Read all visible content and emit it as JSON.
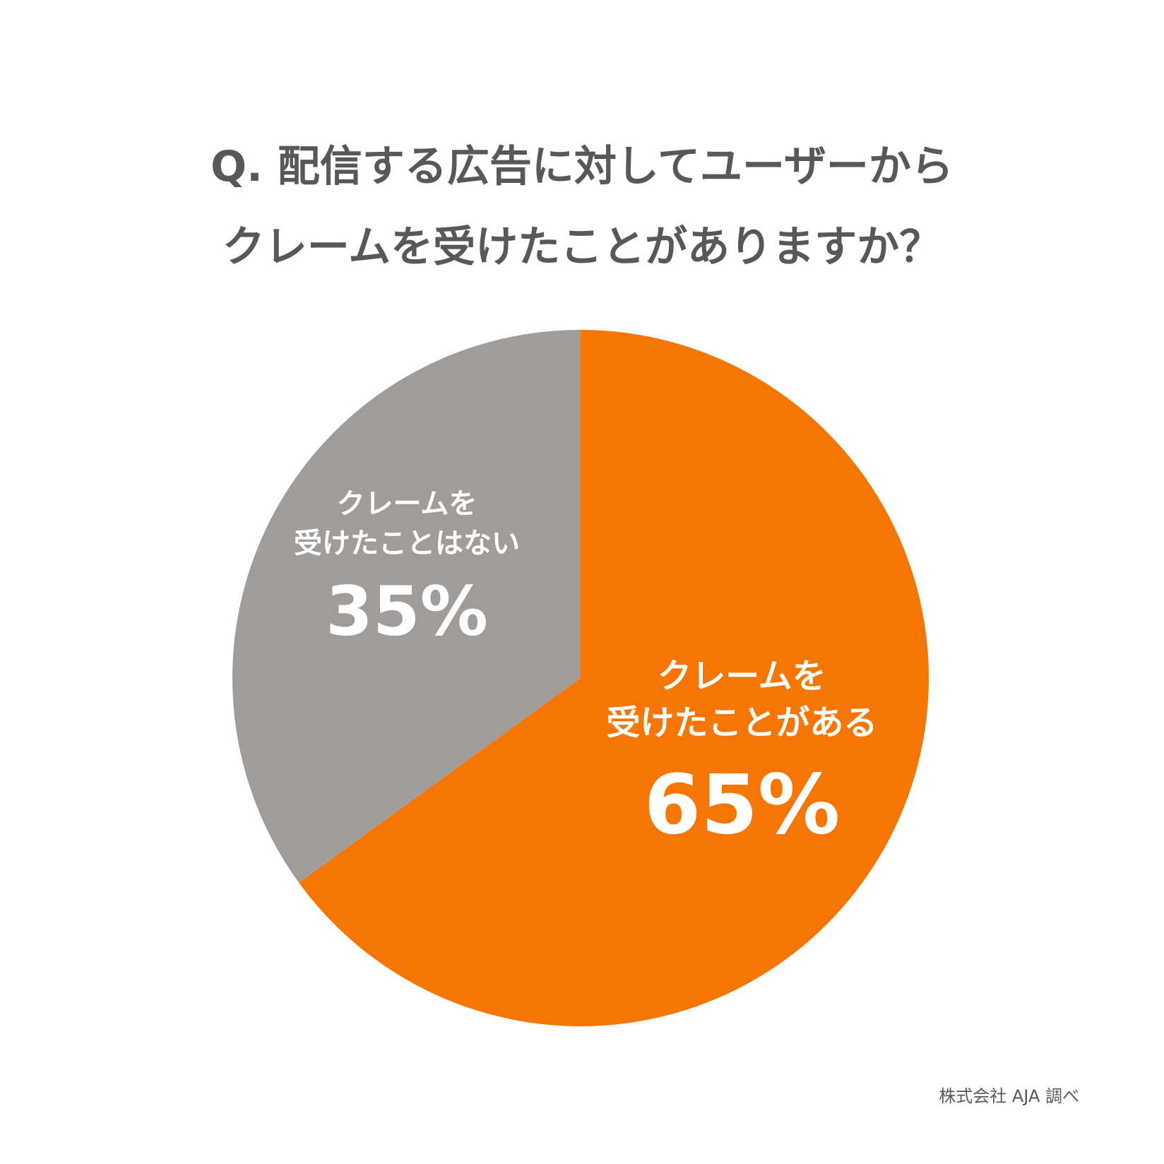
{
  "chart_data": {
    "type": "pie",
    "title_lines": [
      "Q. 配信する広告に対してユーザーから",
      "クレームを受けたことがありますか？"
    ],
    "slices": [
      {
        "label_lines": [
          "クレームを",
          "受けたことがある"
        ],
        "value": 65,
        "value_label": "65%",
        "color": "#F77603"
      },
      {
        "label_lines": [
          "クレームを",
          "受けたことはない"
        ],
        "value": 35,
        "value_label": "35%",
        "color": "#A09C99"
      }
    ],
    "start_angle": "12 o'clock",
    "direction": "clockwise",
    "legend": "none",
    "label_color": "#FFFFFF"
  },
  "source_note": "株式会社 AJA 調べ",
  "colors": {
    "title_text": "#595757",
    "background": "#FFFFFF"
  }
}
